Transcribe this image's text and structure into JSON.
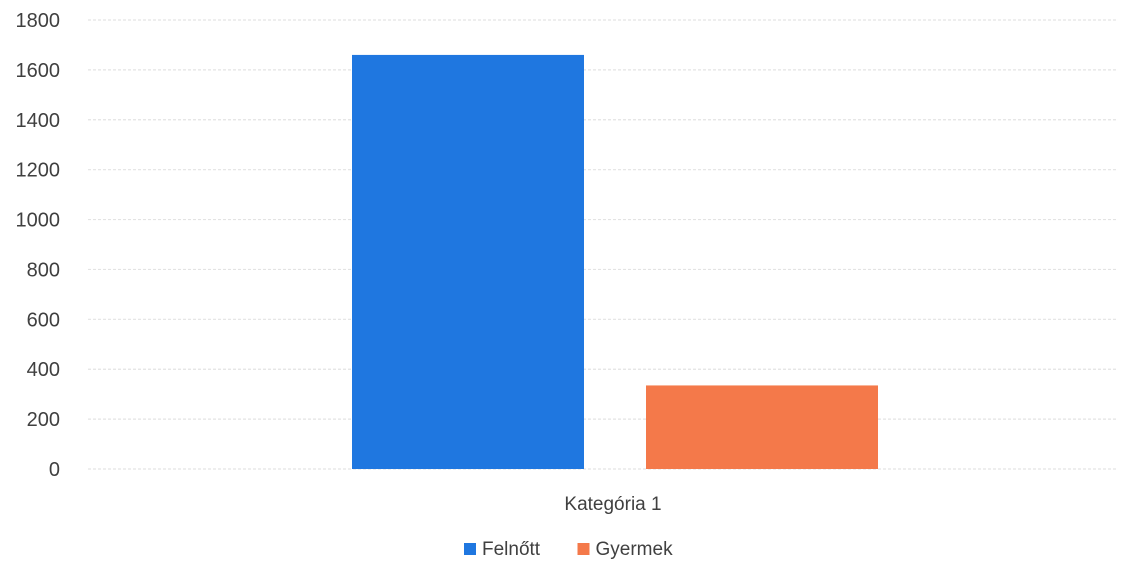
{
  "chart_data": {
    "type": "bar",
    "categories": [
      "Kategória 1"
    ],
    "series": [
      {
        "name": "Felnőtt",
        "values": [
          1660
        ],
        "color": "#1f77e0"
      },
      {
        "name": "Gyermek",
        "values": [
          335
        ],
        "color": "#f4794a"
      }
    ],
    "ylim": [
      0,
      1800
    ],
    "yticks": [
      0,
      200,
      400,
      600,
      800,
      1000,
      1200,
      1400,
      1600,
      1800
    ],
    "title": "",
    "xlabel": "",
    "ylabel": "",
    "grid": true,
    "legend_position": "bottom"
  }
}
